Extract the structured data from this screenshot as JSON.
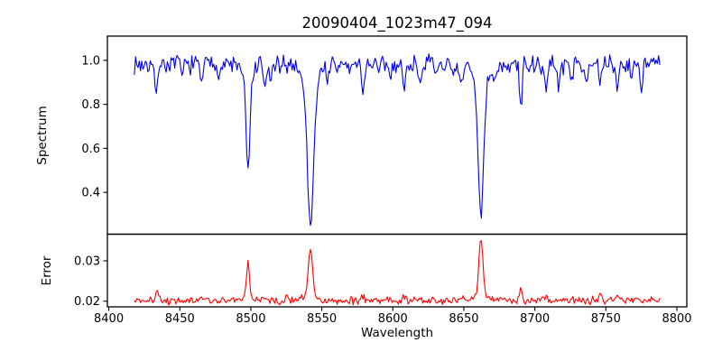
{
  "chart_data": {
    "type": "line",
    "title": "20090404_1023m47_094",
    "xlabel": "Wavelength",
    "x_start": 8418,
    "x_end": 8788,
    "n_points": 431,
    "xlim": [
      8399,
      8807
    ],
    "xtick_values": [
      8400,
      8450,
      8500,
      8550,
      8600,
      8650,
      8700,
      8750,
      8800
    ],
    "xtick_labels": [
      "8400",
      "8450",
      "8500",
      "8550",
      "8600",
      "8650",
      "8700",
      "8750",
      "8800"
    ],
    "grid": false,
    "legend": "none",
    "panels": [
      {
        "name": "spectrum",
        "ylabel": "Spectrum",
        "line_color": "#0000ee",
        "ylim": [
          0.21,
          1.11
        ],
        "ytick_values": [
          0.4,
          0.6,
          0.8,
          1.0
        ],
        "ytick_labels": [
          "0.4",
          "0.6",
          "0.8",
          "1.0"
        ],
        "continuum": 0.982,
        "noise_amplitude": 0.05,
        "absorption_features": [
          [
            8433,
            0.145,
            0.9
          ],
          [
            8452,
            0.05,
            0.8
          ],
          [
            8465,
            0.085,
            0.9
          ],
          [
            8478,
            0.04,
            0.8
          ],
          [
            8498,
            0.42,
            1.3
          ],
          [
            8498,
            0.075,
            3.5
          ],
          [
            8510,
            0.12,
            1.0
          ],
          [
            8514,
            0.08,
            0.9
          ],
          [
            8521,
            0.04,
            0.8
          ],
          [
            8542,
            0.54,
            2.0
          ],
          [
            8542,
            0.19,
            4.0
          ],
          [
            8554,
            0.06,
            0.9
          ],
          [
            8560,
            0.04,
            0.8
          ],
          [
            8570,
            0.035,
            0.8
          ],
          [
            8579,
            0.125,
            0.9
          ],
          [
            8590,
            0.05,
            0.8
          ],
          [
            8598,
            0.06,
            0.9
          ],
          [
            8608,
            0.125,
            0.9
          ],
          [
            8619,
            0.07,
            0.9
          ],
          [
            8630,
            0.05,
            0.8
          ],
          [
            8642,
            0.07,
            1.2
          ],
          [
            8648,
            0.1,
            1.5
          ],
          [
            8662,
            0.52,
            1.8
          ],
          [
            8662,
            0.16,
            3.8
          ],
          [
            8672,
            0.09,
            0.9
          ],
          [
            8680,
            0.05,
            0.8
          ],
          [
            8690,
            0.2,
            0.9
          ],
          [
            8700,
            0.05,
            0.8
          ],
          [
            8708,
            0.13,
            0.9
          ],
          [
            8717,
            0.1,
            0.9
          ],
          [
            8726,
            0.06,
            0.8
          ],
          [
            8736,
            0.07,
            0.8
          ],
          [
            8746,
            0.11,
            0.9
          ],
          [
            8758,
            0.12,
            0.9
          ],
          [
            8768,
            0.06,
            0.8
          ],
          [
            8775,
            0.09,
            0.9
          ]
        ],
        "deep_line_minima": [
          {
            "wavelength": 8498,
            "flux": 0.49
          },
          {
            "wavelength": 8542,
            "flux": 0.25
          },
          {
            "wavelength": 8662,
            "flux": 0.3
          }
        ]
      },
      {
        "name": "error",
        "ylabel": "Error",
        "line_color": "#ff0000",
        "ylim": [
          0.0186,
          0.0366
        ],
        "ytick_values": [
          0.02,
          0.03
        ],
        "ytick_labels": [
          "0.02",
          "0.03"
        ],
        "baseline": 0.0202,
        "noise_amplitude": 0.0012,
        "peak_features": [
          [
            8434,
            0.0022,
            0.9
          ],
          [
            8465,
            0.0008,
            0.9
          ],
          [
            8498,
            0.0092,
            1.1
          ],
          [
            8510,
            0.001,
            0.9
          ],
          [
            8525,
            0.0013,
            0.9
          ],
          [
            8542,
            0.0125,
            1.4
          ],
          [
            8542,
            0.0012,
            4.0
          ],
          [
            8579,
            0.0008,
            0.9
          ],
          [
            8608,
            0.0008,
            0.9
          ],
          [
            8648,
            0.0009,
            1.2
          ],
          [
            8662,
            0.0145,
            1.4
          ],
          [
            8662,
            0.0012,
            4.0
          ],
          [
            8690,
            0.0031,
            1.0
          ],
          [
            8708,
            0.0012,
            0.9
          ],
          [
            8746,
            0.001,
            0.9
          ],
          [
            8758,
            0.001,
            0.9
          ]
        ],
        "peak_maxima": [
          {
            "wavelength": 8498,
            "error": 0.0295
          },
          {
            "wavelength": 8542,
            "error": 0.0335
          },
          {
            "wavelength": 8662,
            "error": 0.0355
          }
        ]
      }
    ]
  }
}
